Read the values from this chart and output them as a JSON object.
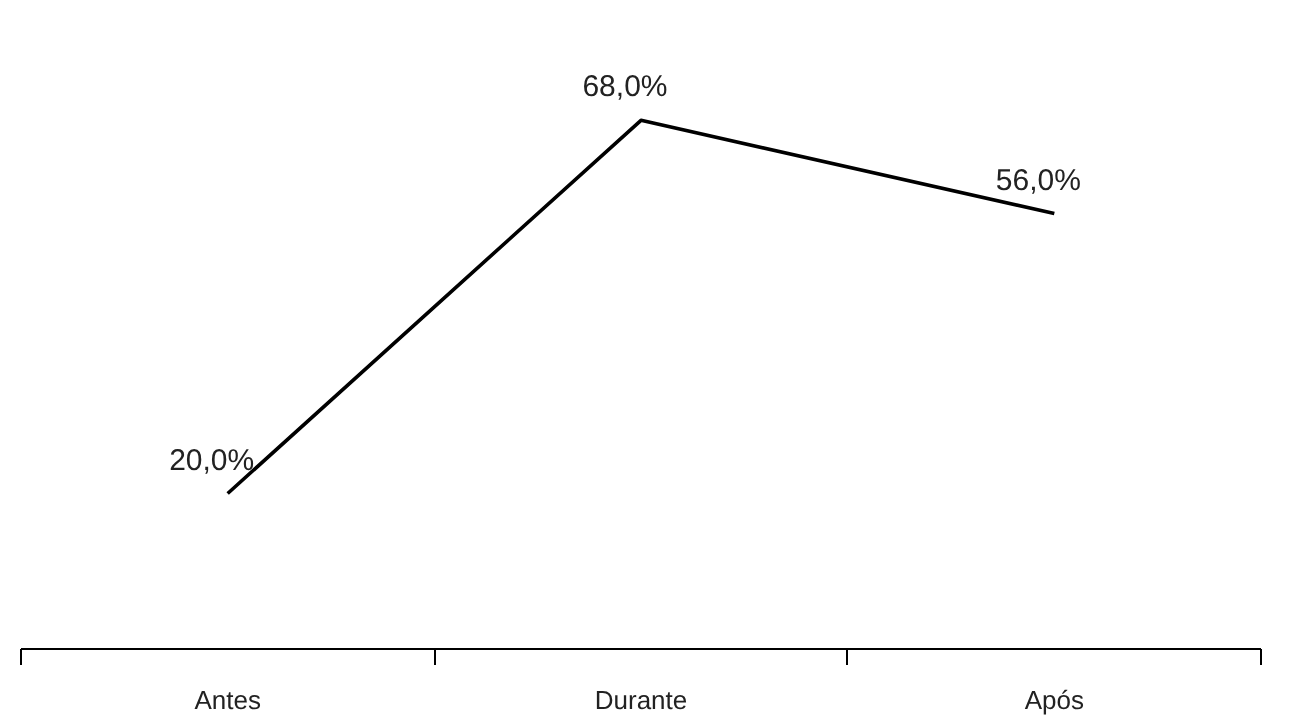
{
  "chart_data": {
    "type": "line",
    "categories": [
      "Antes",
      "Durante",
      "Após"
    ],
    "values": [
      20,
      68,
      56
    ],
    "value_labels": [
      "20,0%",
      "68,0%",
      "56,0%"
    ],
    "color": "#000000",
    "tick_labels": "x",
    "grid": false,
    "line_style": "solid",
    "marker": "none"
  }
}
